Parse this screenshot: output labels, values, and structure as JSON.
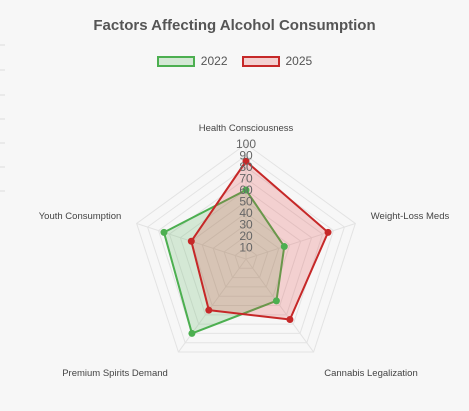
{
  "chart_data": {
    "type": "radar",
    "title": "Factors Affecting Alcohol Consumption",
    "categories": [
      "Health Consciousness",
      "Weight-Loss Meds",
      "Cannabis Legalization",
      "Premium Spirits Demand",
      "Youth Consumption"
    ],
    "series": [
      {
        "name": "2022",
        "values": [
          60,
          35,
          45,
          80,
          75
        ],
        "color": "#4caf50",
        "fill": "rgba(76,175,80,0.2)"
      },
      {
        "name": "2025",
        "values": [
          85,
          75,
          65,
          55,
          50
        ],
        "color": "#c62828",
        "fill": "rgba(229,57,53,0.2)"
      }
    ],
    "r_ticks": [
      "10",
      "20",
      "30",
      "40",
      "50",
      "60",
      "70",
      "80",
      "90",
      "100"
    ],
    "r_range": [
      0,
      100
    ],
    "grid": true,
    "legend_position": "top-center"
  }
}
